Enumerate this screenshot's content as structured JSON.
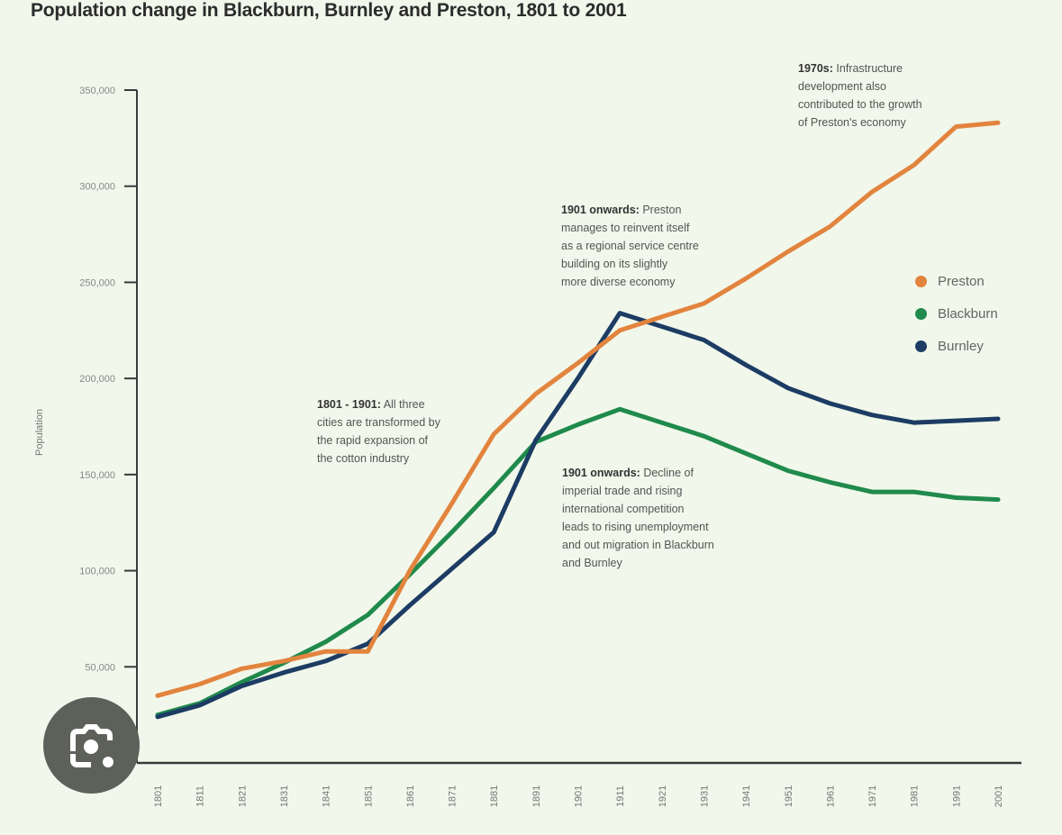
{
  "chart_data": {
    "type": "line",
    "title": "Population change in Blackburn, Burnley and Preston, 1801 to 2001",
    "xlabel": "",
    "ylabel": "Population",
    "ylim": [
      0,
      350000
    ],
    "y_ticks": [
      50000,
      100000,
      150000,
      200000,
      250000,
      300000,
      350000
    ],
    "y_tick_labels": [
      "50,000",
      "100,000",
      "150,000",
      "200,000",
      "250,000",
      "300,000",
      "350,000"
    ],
    "x": [
      1801,
      1811,
      1821,
      1831,
      1841,
      1851,
      1861,
      1871,
      1881,
      1891,
      1901,
      1911,
      1921,
      1931,
      1941,
      1951,
      1961,
      1971,
      1981,
      1991,
      2001
    ],
    "x_tick_labels": [
      "1801",
      "1811",
      "1821",
      "1831",
      "1841",
      "1851",
      "1861",
      "1871",
      "1881",
      "1891",
      "1901",
      "1911",
      "1921",
      "1931",
      "1941",
      "1951",
      "1961",
      "1971",
      "1981",
      "1991",
      "2001"
    ],
    "grid": false,
    "legend_position": "right",
    "series": [
      {
        "name": "Preston",
        "color": "#e2843e",
        "values": [
          35000,
          41000,
          49000,
          53000,
          58000,
          58000,
          100000,
          135000,
          171000,
          192000,
          208000,
          225000,
          232000,
          239000,
          252000,
          266000,
          279000,
          297000,
          311000,
          331000,
          333000
        ]
      },
      {
        "name": "Blackburn",
        "color": "#1f8a4c",
        "values": [
          25000,
          31000,
          42000,
          52000,
          63000,
          77000,
          98000,
          120000,
          143000,
          167000,
          176000,
          184000,
          177000,
          170000,
          161000,
          152000,
          146000,
          141000,
          141000,
          138000,
          137000
        ]
      },
      {
        "name": "Burnley",
        "color": "#1c3c64",
        "values": [
          24000,
          30000,
          40000,
          47000,
          53000,
          62000,
          82000,
          101000,
          120000,
          168000,
          200000,
          234000,
          227000,
          220000,
          207000,
          195000,
          187000,
          181000,
          177000,
          178000,
          179000
        ]
      }
    ],
    "annotations": [
      {
        "bold": "1801 - 1901:",
        "text": "All three cities are transformed by the rapid expansion of the cotton industry",
        "lines": [
          "cities are transformed by",
          "the rapid expansion of",
          "the cotton industry"
        ],
        "first": "All three"
      },
      {
        "bold": "1901 onwards:",
        "first": "Preston",
        "lines": [
          "manages to reinvent itself",
          "as a regional service centre",
          "building on its slightly",
          "more diverse economy"
        ]
      },
      {
        "bold": "1901 onwards:",
        "first": "Decline of",
        "lines": [
          "imperial trade and rising",
          "international competition",
          "leads to rising unemployment",
          "and out migration in Blackburn",
          "and Burnley"
        ]
      },
      {
        "bold": "1970s:",
        "first": "Infrastructure",
        "lines": [
          "development also",
          "contributed to the growth",
          "of Preston's economy"
        ]
      }
    ]
  },
  "overlay": {
    "lens_icon": "google-lens-icon"
  }
}
